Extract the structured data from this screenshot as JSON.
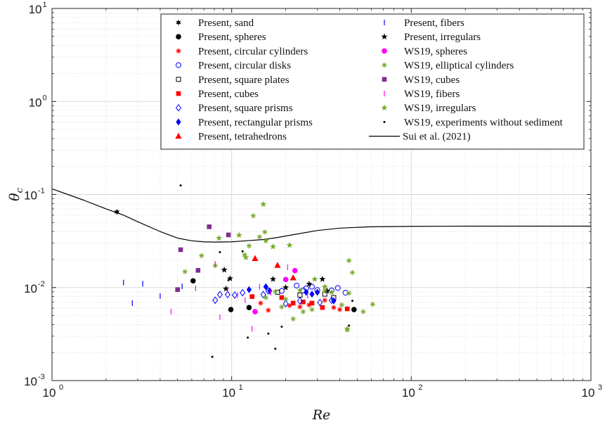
{
  "chart_data": {
    "type": "scatter",
    "xlabel": "Re",
    "ylabel_symbol": "θ",
    "ylabel_sub": "c",
    "xscale": "log",
    "yscale": "log",
    "xlim": [
      1,
      1000
    ],
    "ylim": [
      0.001,
      10
    ],
    "grid": true,
    "minor_grid": true,
    "legend_position": "top-right",
    "x_ticks": [
      {
        "base": "10",
        "exp": "0",
        "value": 1
      },
      {
        "base": "10",
        "exp": "1",
        "value": 10
      },
      {
        "base": "10",
        "exp": "2",
        "value": 100
      },
      {
        "base": "10",
        "exp": "3",
        "value": 1000
      }
    ],
    "y_ticks": [
      {
        "base": "10",
        "exp": "-3",
        "value": 0.001
      },
      {
        "base": "10",
        "exp": "-2",
        "value": 0.01
      },
      {
        "base": "10",
        "exp": "-1",
        "value": 0.1
      },
      {
        "base": "10",
        "exp": "0",
        "value": 1
      },
      {
        "base": "10",
        "exp": "1",
        "value": 10
      }
    ],
    "series": [
      {
        "name": "Present, sand",
        "marker": "star6",
        "color": "#000000",
        "points": [
          [
            2.3,
            0.065
          ]
        ]
      },
      {
        "name": "Present, spheres",
        "marker": "circle-filled",
        "color": "#000000",
        "points": [
          [
            6.1,
            0.0118
          ],
          [
            9.9,
            0.0058
          ],
          [
            12.5,
            0.0061
          ],
          [
            48,
            0.0058
          ]
        ]
      },
      {
        "name": "Present, circular cylinders",
        "marker": "asterisk",
        "color": "#ff0000",
        "points": [
          [
            13.5,
            0.0055
          ],
          [
            14.5,
            0.0068
          ],
          [
            16,
            0.0057
          ],
          [
            21,
            0.0064
          ],
          [
            24,
            0.0062
          ],
          [
            27,
            0.0065
          ],
          [
            33,
            0.0073
          ],
          [
            37,
            0.0061
          ],
          [
            40,
            0.0058
          ]
        ]
      },
      {
        "name": "Present, circular disks",
        "marker": "circle-open",
        "color": "#0000ff",
        "points": [
          [
            23,
            0.0105
          ],
          [
            25,
            0.0093
          ],
          [
            26,
            0.0098
          ],
          [
            28,
            0.0102
          ],
          [
            30,
            0.0094
          ],
          [
            36,
            0.0093
          ],
          [
            39,
            0.0099
          ],
          [
            43,
            0.0088
          ],
          [
            19,
            0.0092
          ]
        ]
      },
      {
        "name": "Present, square plates",
        "marker": "square-open",
        "color": "#000000",
        "points": [
          [
            18,
            0.0089
          ],
          [
            24,
            0.0083
          ],
          [
            33,
            0.0085
          ],
          [
            37,
            0.0078
          ]
        ]
      },
      {
        "name": "Present, cubes",
        "marker": "square-filled",
        "color": "#ff0000",
        "points": [
          [
            13,
            0.008
          ],
          [
            19,
            0.0078
          ],
          [
            22,
            0.0068
          ],
          [
            25,
            0.007
          ],
          [
            28,
            0.0068
          ],
          [
            32,
            0.0061
          ],
          [
            44,
            0.0059
          ]
        ]
      },
      {
        "name": "Present, square prisms",
        "marker": "diamond-open",
        "color": "#0000ff",
        "points": [
          [
            8.1,
            0.0073
          ],
          [
            8.6,
            0.0084
          ],
          [
            9.5,
            0.0084
          ],
          [
            10.4,
            0.0083
          ],
          [
            11.5,
            0.0088
          ],
          [
            15,
            0.0084
          ],
          [
            16,
            0.0092
          ],
          [
            20,
            0.0067
          ],
          [
            24,
            0.0072
          ],
          [
            31,
            0.0069
          ],
          [
            36,
            0.0073
          ]
        ]
      },
      {
        "name": "Present, rectangular prisms",
        "marker": "diamond-filled",
        "color": "#0000ff",
        "points": [
          [
            12.5,
            0.0095
          ],
          [
            15.5,
            0.0102
          ],
          [
            16.3,
            0.0092
          ],
          [
            26,
            0.0089
          ],
          [
            28,
            0.0085
          ],
          [
            30,
            0.0089
          ],
          [
            37,
            0.0072
          ]
        ]
      },
      {
        "name": "Present, tetrahedrons",
        "marker": "triangle-filled",
        "color": "#ff0000",
        "points": [
          [
            13.5,
            0.0205
          ],
          [
            18,
            0.0173
          ],
          [
            22,
            0.0127
          ]
        ]
      },
      {
        "name": "Present, fibers",
        "marker": "vline",
        "color": "#0000ff",
        "points": [
          [
            2.5,
            0.0113
          ],
          [
            2.8,
            0.0068
          ],
          [
            3.2,
            0.011
          ],
          [
            4.0,
            0.0081
          ],
          [
            5.3,
            0.0103
          ]
        ]
      },
      {
        "name": "Present, irregulars",
        "marker": "star5",
        "color": "#000000",
        "points": [
          [
            9.1,
            0.0155
          ],
          [
            9.3,
            0.0097
          ],
          [
            9.8,
            0.0125
          ],
          [
            17,
            0.0123
          ],
          [
            20,
            0.01
          ],
          [
            27,
            0.0109
          ],
          [
            32,
            0.0123
          ],
          [
            34,
            0.0092
          ]
        ]
      },
      {
        "name": "WS19, spheres",
        "marker": "circle-filled",
        "color": "#ff00ff",
        "points": [
          [
            13.5,
            0.0055
          ],
          [
            20,
            0.0122
          ],
          [
            22.5,
            0.0152
          ]
        ]
      },
      {
        "name": "WS19, elliptical cylinders",
        "marker": "asterisk",
        "color": "#77ac30",
        "points": [
          [
            5.5,
            0.0148
          ],
          [
            6.8,
            0.022
          ],
          [
            8.1,
            0.0172
          ],
          [
            11.8,
            0.0225
          ],
          [
            12.5,
            0.028
          ],
          [
            13.2,
            0.059
          ],
          [
            14.3,
            0.035
          ],
          [
            15.3,
            0.0395
          ],
          [
            15.5,
            0.0078
          ],
          [
            17.5,
            0.009
          ],
          [
            19,
            0.0062
          ],
          [
            20,
            0.0075
          ],
          [
            22,
            0.0046
          ],
          [
            25,
            0.0055
          ],
          [
            28,
            0.0058
          ],
          [
            33,
            0.0093
          ],
          [
            41,
            0.0065
          ],
          [
            44,
            0.0035
          ],
          [
            45,
            0.0087
          ],
          [
            54,
            0.0055
          ],
          [
            61,
            0.0066
          ],
          [
            45,
            0.0195
          ],
          [
            47,
            0.0145
          ]
        ]
      },
      {
        "name": "WS19, cubes",
        "marker": "square-filled",
        "color": "#7e2f8e",
        "points": [
          [
            5.0,
            0.0095
          ],
          [
            5.2,
            0.0255
          ],
          [
            6.5,
            0.0153
          ],
          [
            7.5,
            0.045
          ],
          [
            9.6,
            0.0368
          ]
        ]
      },
      {
        "name": "WS19, fibers",
        "marker": "vline",
        "color": "#ff00ff",
        "points": [
          [
            4.6,
            0.0055
          ],
          [
            6.3,
            0.0098
          ],
          [
            8.6,
            0.0048
          ],
          [
            8.1,
            0.018
          ],
          [
            9.5,
            0.0095
          ],
          [
            10.8,
            0.0083
          ],
          [
            11.9,
            0.0073
          ],
          [
            14.3,
            0.0102
          ],
          [
            16.5,
            0.0088
          ],
          [
            20.5,
            0.0165
          ],
          [
            26.5,
            0.0082
          ],
          [
            13,
            0.0036
          ]
        ]
      },
      {
        "name": "WS19, irregulars",
        "marker": "star5",
        "color": "#77ac30",
        "points": [
          [
            8.5,
            0.034
          ],
          [
            11,
            0.0365
          ],
          [
            12,
            0.021
          ],
          [
            15,
            0.0785
          ],
          [
            15.5,
            0.0318
          ],
          [
            17,
            0.0275
          ],
          [
            21,
            0.0285
          ],
          [
            24,
            0.0093
          ],
          [
            29,
            0.0123
          ],
          [
            33,
            0.0102
          ],
          [
            36,
            0.0089
          ],
          [
            44,
            0.0036
          ]
        ]
      },
      {
        "name": "WS19, experiments without sediment",
        "marker": "dot",
        "color": "#000000",
        "points": [
          [
            5.2,
            0.125
          ],
          [
            7.8,
            0.0018
          ],
          [
            8.6,
            0.024
          ],
          [
            9.6,
            0.012
          ],
          [
            11.5,
            0.0245
          ],
          [
            12.3,
            0.0029
          ],
          [
            16,
            0.0032
          ],
          [
            17.5,
            0.0022
          ],
          [
            19,
            0.0038
          ],
          [
            45,
            0.0039
          ],
          [
            47,
            0.0072
          ]
        ]
      }
    ],
    "curves": [
      {
        "name": "Sui et al. (2021)",
        "color": "#000000",
        "points": [
          [
            1,
            0.115
          ],
          [
            1.5,
            0.087
          ],
          [
            2,
            0.07
          ],
          [
            2.5,
            0.06
          ],
          [
            3,
            0.051
          ],
          [
            4,
            0.04
          ],
          [
            5,
            0.034
          ],
          [
            6,
            0.0318
          ],
          [
            7,
            0.031
          ],
          [
            8,
            0.0308
          ],
          [
            10,
            0.031
          ],
          [
            12,
            0.0318
          ],
          [
            15,
            0.0328
          ],
          [
            18,
            0.0345
          ],
          [
            22,
            0.037
          ],
          [
            30,
            0.041
          ],
          [
            40,
            0.0435
          ],
          [
            60,
            0.045
          ],
          [
            100,
            0.0455
          ],
          [
            200,
            0.0457
          ],
          [
            400,
            0.0457
          ],
          [
            1000,
            0.0457
          ]
        ]
      }
    ],
    "legend_columns": [
      [
        "Present, sand",
        "Present, spheres",
        "Present, circular cylinders",
        "Present, circular disks",
        "Present, square plates",
        "Present, cubes",
        "Present, square prisms",
        "Present, rectangular prisms",
        "Present, tetrahedrons"
      ],
      [
        "Present, fibers",
        "Present, irregulars",
        "WS19, spheres",
        "WS19, elliptical cylinders",
        "WS19, cubes",
        "WS19, fibers",
        "WS19, irregulars",
        "WS19, experiments without sediment",
        "Sui et al. (2021)"
      ]
    ]
  }
}
